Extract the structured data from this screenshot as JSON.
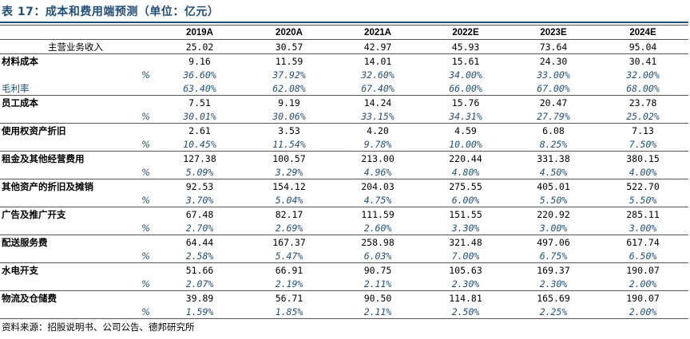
{
  "title": "表 17：成本和费用端预测（单位：亿元）",
  "columns": [
    "2019A",
    "2020A",
    "2021A",
    "2022E",
    "2023E",
    "2024E"
  ],
  "rows": [
    {
      "kind": "value",
      "style": "indent",
      "label": "主营业务收入",
      "values": [
        "25.02",
        "30.57",
        "42.97",
        "45.93",
        "73.64",
        "95.04"
      ]
    },
    {
      "kind": "value",
      "style": "cat",
      "label": "材料成本",
      "values": [
        "9.16",
        "11.59",
        "14.01",
        "15.61",
        "24.30",
        "30.41"
      ]
    },
    {
      "kind": "ratio",
      "style": "pct",
      "label": "%",
      "values": [
        "36.60%",
        "37.92%",
        "32.60%",
        "34.00%",
        "33.00%",
        "32.00%"
      ]
    },
    {
      "kind": "ratio",
      "style": "plain",
      "label": "毛利率",
      "values": [
        "63.40%",
        "62.08%",
        "67.40%",
        "66.00%",
        "67.00%",
        "68.00%"
      ]
    },
    {
      "kind": "value",
      "style": "cat",
      "label": "员工成本",
      "values": [
        "7.51",
        "9.19",
        "14.24",
        "15.76",
        "20.47",
        "23.78"
      ]
    },
    {
      "kind": "ratio",
      "style": "pct",
      "label": "%",
      "values": [
        "30.01%",
        "30.06%",
        "33.15%",
        "34.31%",
        "27.79%",
        "25.02%"
      ]
    },
    {
      "kind": "value",
      "style": "cat",
      "label": "使用权资产折旧",
      "values": [
        "2.61",
        "3.53",
        "4.20",
        "4.59",
        "6.08",
        "7.13"
      ]
    },
    {
      "kind": "ratio",
      "style": "pct",
      "label": "%",
      "values": [
        "10.45%",
        "11.54%",
        "9.78%",
        "10.00%",
        "8.25%",
        "7.50%"
      ]
    },
    {
      "kind": "value",
      "style": "cat",
      "label": "租金及其他经营费用",
      "values": [
        "127.38",
        "100.57",
        "213.00",
        "220.44",
        "331.38",
        "380.15"
      ]
    },
    {
      "kind": "ratio",
      "style": "pct",
      "label": "%",
      "values": [
        "5.09%",
        "3.29%",
        "4.96%",
        "4.80%",
        "4.50%",
        "4.00%"
      ]
    },
    {
      "kind": "value",
      "style": "cat",
      "label": "其他资产的折旧及摊销",
      "values": [
        "92.53",
        "154.12",
        "204.03",
        "275.55",
        "405.01",
        "522.70"
      ]
    },
    {
      "kind": "ratio",
      "style": "pct",
      "label": "%",
      "values": [
        "3.70%",
        "5.04%",
        "4.75%",
        "6.00%",
        "5.50%",
        "5.50%"
      ]
    },
    {
      "kind": "value",
      "style": "cat",
      "label": "广告及推广开支",
      "values": [
        "67.48",
        "82.17",
        "111.59",
        "151.55",
        "220.92",
        "285.11"
      ]
    },
    {
      "kind": "ratio",
      "style": "pct",
      "label": "%",
      "values": [
        "2.70%",
        "2.69%",
        "2.60%",
        "3.30%",
        "3.00%",
        "3.00%"
      ]
    },
    {
      "kind": "value",
      "style": "cat",
      "label": "配送服务费",
      "values": [
        "64.44",
        "167.37",
        "258.98",
        "321.48",
        "497.06",
        "617.74"
      ]
    },
    {
      "kind": "ratio",
      "style": "pct",
      "label": "%",
      "values": [
        "2.58%",
        "5.47%",
        "6.03%",
        "7.00%",
        "6.75%",
        "6.50%"
      ]
    },
    {
      "kind": "value",
      "style": "cat",
      "label": "水电开支",
      "values": [
        "51.66",
        "66.91",
        "90.75",
        "105.63",
        "169.37",
        "190.07"
      ]
    },
    {
      "kind": "ratio",
      "style": "pct",
      "label": "%",
      "values": [
        "2.07%",
        "2.19%",
        "2.11%",
        "2.30%",
        "2.30%",
        "2.00%"
      ]
    },
    {
      "kind": "value",
      "style": "cat",
      "label": "物流及仓储费",
      "values": [
        "39.89",
        "56.71",
        "90.50",
        "114.81",
        "165.69",
        "190.07"
      ]
    },
    {
      "kind": "ratio",
      "style": "pct",
      "label": "%",
      "values": [
        "1.59%",
        "1.85%",
        "2.11%",
        "2.50%",
        "2.25%",
        "2.00%"
      ]
    }
  ],
  "source": "资料来源：招股说明书、公司公告、德邦研究所",
  "colors": {
    "title": "#1f4e79",
    "ratio_text": "#1f4e79",
    "rule": "#555555"
  }
}
